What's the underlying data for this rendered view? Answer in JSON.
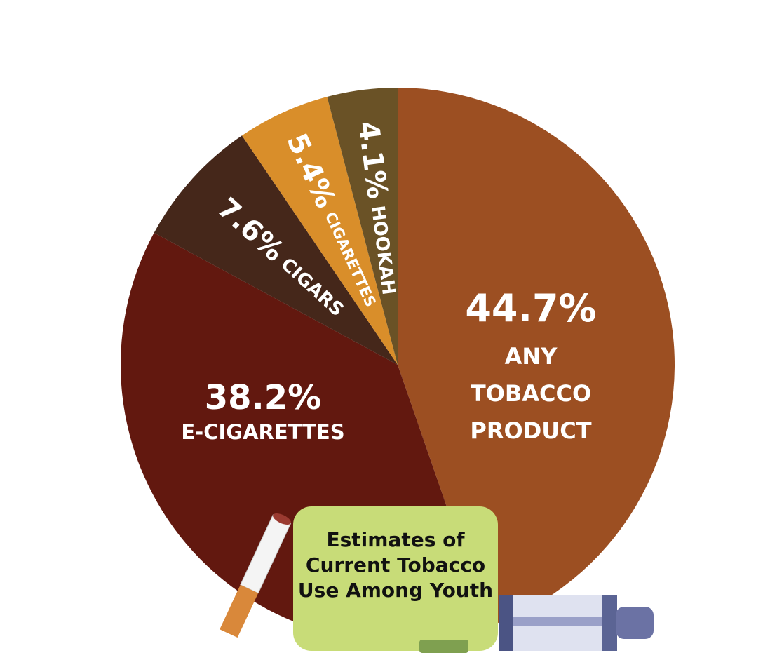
{
  "chart_data": {
    "type": "pie",
    "title": "Estimates of Current Tobacco Use Among Youth",
    "categories": [
      "ANY TOBACCO PRODUCT",
      "E-CIGARETTES",
      "CIGARS",
      "CIGARETTES",
      "HOOKAH"
    ],
    "values": [
      44.7,
      38.2,
      7.6,
      5.4,
      4.1
    ],
    "value_labels": [
      "44.7%",
      "38.2%",
      "7.6%",
      "5.4%",
      "4.1%"
    ],
    "colors": [
      "#9c4f22",
      "#62180f",
      "#45271a",
      "#d98e2a",
      "#6a5226"
    ]
  }
}
